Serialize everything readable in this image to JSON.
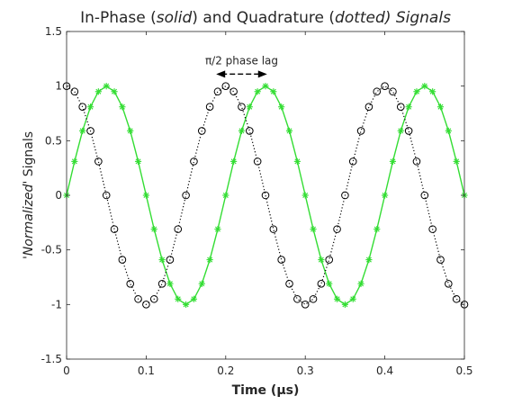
{
  "chart_data": {
    "type": "line",
    "title_parts": [
      {
        "text": "In-Phase (",
        "italic": false
      },
      {
        "text": "solid",
        "italic": true
      },
      {
        "text": ") and Quadrature (",
        "italic": false
      },
      {
        "text": "dotted",
        "italic": true
      },
      {
        "text": ") Signals",
        "italic": true
      }
    ],
    "xlabel": "Time (μs)",
    "ylabel_parts": [
      {
        "text": "'Normalized'",
        "italic": true
      },
      {
        "text": " Signals",
        "italic": false
      }
    ],
    "xlim": [
      0,
      0.5
    ],
    "ylim": [
      -1.5,
      1.5
    ],
    "x_ticks": [
      0,
      0.1,
      0.2,
      0.3,
      0.4,
      0.5
    ],
    "x_tick_labels": [
      "0",
      "0.1",
      "0.2",
      "0.3",
      "0.4",
      "0.5"
    ],
    "y_ticks": [
      -1.5,
      -1,
      -0.5,
      0,
      0.5,
      1,
      1.5
    ],
    "y_tick_labels": [
      "-1.5",
      "-1",
      "-0.5",
      "0",
      "0.5",
      "1",
      "1.5"
    ],
    "grid": false,
    "series": [
      {
        "style": "solid",
        "marker": "asterisk",
        "color": "#33dd33",
        "x": [
          0,
          0.01,
          0.02,
          0.03,
          0.04,
          0.05,
          0.06,
          0.07,
          0.08,
          0.09,
          0.1,
          0.11,
          0.12,
          0.13,
          0.14,
          0.15,
          0.16,
          0.17,
          0.18,
          0.19,
          0.2,
          0.21,
          0.22,
          0.23,
          0.24,
          0.25,
          0.26,
          0.27,
          0.28,
          0.29,
          0.3,
          0.31,
          0.32,
          0.33,
          0.34,
          0.35,
          0.36,
          0.37,
          0.38,
          0.39,
          0.4,
          0.41,
          0.42,
          0.43,
          0.44,
          0.45,
          0.46,
          0.47,
          0.48,
          0.49,
          0.5
        ],
        "y": [
          0,
          0.31,
          0.59,
          0.81,
          0.95,
          1,
          0.95,
          0.81,
          0.59,
          0.31,
          0,
          -0.31,
          -0.59,
          -0.81,
          -0.95,
          -1,
          -0.95,
          -0.81,
          -0.59,
          -0.31,
          0,
          0.31,
          0.59,
          0.81,
          0.95,
          1,
          0.95,
          0.81,
          0.59,
          0.31,
          0,
          -0.31,
          -0.59,
          -0.81,
          -0.95,
          -1,
          -0.95,
          -0.81,
          -0.59,
          -0.31,
          0,
          0.31,
          0.59,
          0.81,
          0.95,
          1,
          0.95,
          0.81,
          0.59,
          0.31,
          0
        ]
      },
      {
        "style": "dotted",
        "marker": "circle",
        "color": "#000000",
        "x": [
          0,
          0.01,
          0.02,
          0.03,
          0.04,
          0.05,
          0.06,
          0.07,
          0.08,
          0.09,
          0.1,
          0.11,
          0.12,
          0.13,
          0.14,
          0.15,
          0.16,
          0.17,
          0.18,
          0.19,
          0.2,
          0.21,
          0.22,
          0.23,
          0.24,
          0.25,
          0.26,
          0.27,
          0.28,
          0.29,
          0.3,
          0.31,
          0.32,
          0.33,
          0.34,
          0.35,
          0.36,
          0.37,
          0.38,
          0.39,
          0.4,
          0.41,
          0.42,
          0.43,
          0.44,
          0.45,
          0.46,
          0.47,
          0.48,
          0.49,
          0.5
        ],
        "y": [
          1,
          0.95,
          0.81,
          0.59,
          0.31,
          0,
          -0.31,
          -0.59,
          -0.81,
          -0.95,
          -1,
          -0.95,
          -0.81,
          -0.59,
          -0.31,
          0,
          0.31,
          0.59,
          0.81,
          0.95,
          1,
          0.95,
          0.81,
          0.59,
          0.31,
          0,
          -0.31,
          -0.59,
          -0.81,
          -0.95,
          -1,
          -0.95,
          -0.81,
          -0.59,
          -0.31,
          0,
          0.31,
          0.59,
          0.81,
          0.95,
          1,
          0.95,
          0.81,
          0.59,
          0.31,
          0,
          -0.31,
          -0.59,
          -0.81,
          -0.95,
          -1
        ]
      }
    ],
    "annotation": {
      "text": "π/2 phase lag",
      "arrow_from_x": 0.188,
      "arrow_to_x": 0.252,
      "arrow_y": 1.11,
      "text_x": 0.22,
      "text_y": 1.2
    }
  }
}
